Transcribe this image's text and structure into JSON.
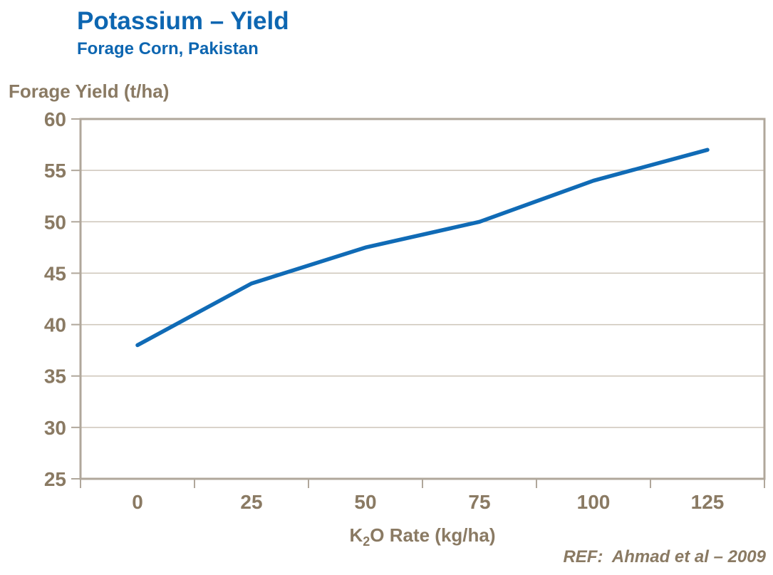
{
  "header": {
    "title": "Potassium – Yield",
    "subtitle": "Forage Corn, Pakistan"
  },
  "footer": {
    "ref": "REF:  Ahmad et al – 2009"
  },
  "chart_data": {
    "type": "line",
    "categories": [
      "0",
      "25",
      "50",
      "75",
      "100",
      "125"
    ],
    "series": [
      {
        "name": "Forage Yield",
        "values": [
          38,
          44,
          47.5,
          50,
          54,
          57
        ]
      }
    ],
    "title": "Potassium – Yield",
    "subtitle": "Forage Corn, Pakistan",
    "xlabel": "K2O Rate (kg/ha)",
    "xlabel_parts": {
      "pre": "K",
      "sub": "2",
      "post": "O Rate (kg/ha)"
    },
    "ylabel": "Forage Yield (t/ha)",
    "ylim": [
      25,
      60
    ],
    "y_ticks": [
      25,
      30,
      35,
      40,
      45,
      50,
      55,
      60
    ],
    "grid": "horizontal-only",
    "legend": "none",
    "x_axis_style": "category-ticks-between-labels"
  },
  "colors": {
    "title_blue": "#0d66b1",
    "line_blue": "#106bb6",
    "axis_text": "#8a7a63",
    "plot_border": "#b0a79b",
    "gridline": "#cdc5b9"
  }
}
